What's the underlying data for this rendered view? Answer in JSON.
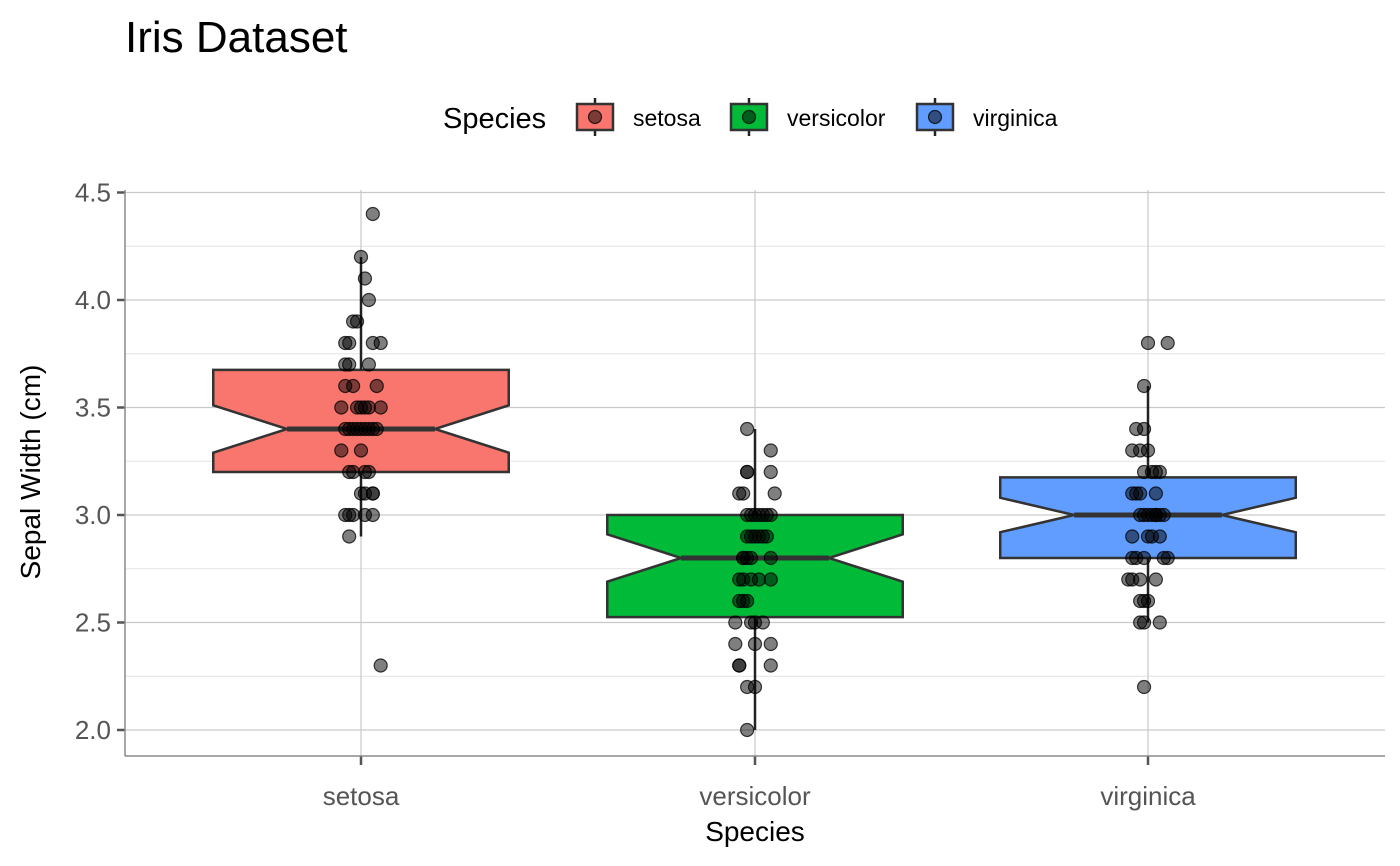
{
  "chart_data": {
    "type": "boxplot",
    "title": "Iris Dataset",
    "xlabel": "Species",
    "ylabel": "Sepal Width (cm)",
    "ylim": [
      1.88,
      4.5
    ],
    "yticks": [
      "2.0",
      "2.5",
      "3.0",
      "3.5",
      "4.0",
      "4.5"
    ],
    "ytick_values": [
      2.0,
      2.5,
      3.0,
      3.5,
      4.0,
      4.5
    ],
    "grid": true,
    "notched": true,
    "jittered_points": true,
    "legend": {
      "title": "Species",
      "position": "top",
      "entries": [
        "setosa",
        "versicolor",
        "virginica"
      ]
    },
    "categories": [
      "setosa",
      "versicolor",
      "virginica"
    ],
    "series": [
      {
        "name": "setosa",
        "color": "#F8766D",
        "q1": 3.2,
        "median": 3.4,
        "q3": 3.675,
        "whisker_low": 2.9,
        "whisker_high": 4.2,
        "notch_low": 3.29,
        "notch_high": 3.51,
        "points": [
          {
            "dx": 0.03,
            "y": 4.4
          },
          {
            "dx": 0.0,
            "y": 4.2
          },
          {
            "dx": 0.01,
            "y": 4.1
          },
          {
            "dx": 0.02,
            "y": 4.0
          },
          {
            "dx": -0.01,
            "y": 3.9
          },
          {
            "dx": -0.02,
            "y": 3.9
          },
          {
            "dx": 0.05,
            "y": 3.8
          },
          {
            "dx": 0.03,
            "y": 3.8
          },
          {
            "dx": -0.04,
            "y": 3.8
          },
          {
            "dx": -0.03,
            "y": 3.8
          },
          {
            "dx": -0.04,
            "y": 3.7
          },
          {
            "dx": 0.02,
            "y": 3.7
          },
          {
            "dx": -0.03,
            "y": 3.7
          },
          {
            "dx": 0.04,
            "y": 3.6
          },
          {
            "dx": -0.04,
            "y": 3.6
          },
          {
            "dx": -0.02,
            "y": 3.6
          },
          {
            "dx": 0.05,
            "y": 3.5
          },
          {
            "dx": -0.05,
            "y": 3.5
          },
          {
            "dx": 0.0,
            "y": 3.5
          },
          {
            "dx": 0.01,
            "y": 3.5
          },
          {
            "dx": -0.01,
            "y": 3.5
          },
          {
            "dx": 0.02,
            "y": 3.5
          },
          {
            "dx": -0.02,
            "y": 3.4
          },
          {
            "dx": 0.03,
            "y": 3.4
          },
          {
            "dx": -0.04,
            "y": 3.4
          },
          {
            "dx": 0.01,
            "y": 3.4
          },
          {
            "dx": -0.03,
            "y": 3.4
          },
          {
            "dx": 0.04,
            "y": 3.4
          },
          {
            "dx": 0.0,
            "y": 3.4
          },
          {
            "dx": 0.02,
            "y": 3.4
          },
          {
            "dx": -0.01,
            "y": 3.4
          },
          {
            "dx": -0.05,
            "y": 3.3
          },
          {
            "dx": 0.0,
            "y": 3.3
          },
          {
            "dx": -0.03,
            "y": 3.2
          },
          {
            "dx": 0.01,
            "y": 3.2
          },
          {
            "dx": -0.02,
            "y": 3.2
          },
          {
            "dx": 0.02,
            "y": 3.2
          },
          {
            "dx": 0.03,
            "y": 3.1
          },
          {
            "dx": 0.01,
            "y": 3.1
          },
          {
            "dx": 0.0,
            "y": 3.1
          },
          {
            "dx": 0.03,
            "y": 3.1
          },
          {
            "dx": -0.02,
            "y": 3.0
          },
          {
            "dx": -0.03,
            "y": 3.0
          },
          {
            "dx": 0.01,
            "y": 3.0
          },
          {
            "dx": 0.03,
            "y": 3.0
          },
          {
            "dx": -0.04,
            "y": 3.0
          },
          {
            "dx": -0.03,
            "y": 2.9
          },
          {
            "dx": 0.05,
            "y": 2.3
          }
        ]
      },
      {
        "name": "versicolor",
        "color": "#00BA38",
        "q1": 2.525,
        "median": 2.8,
        "q3": 3.0,
        "whisker_low": 2.0,
        "whisker_high": 3.4,
        "notch_low": 2.69,
        "notch_high": 2.91,
        "points": [
          {
            "dx": -0.02,
            "y": 3.4
          },
          {
            "dx": 0.04,
            "y": 3.3
          },
          {
            "dx": -0.02,
            "y": 3.2
          },
          {
            "dx": -0.02,
            "y": 3.2
          },
          {
            "dx": 0.04,
            "y": 3.2
          },
          {
            "dx": -0.03,
            "y": 3.1
          },
          {
            "dx": -0.04,
            "y": 3.1
          },
          {
            "dx": 0.05,
            "y": 3.1
          },
          {
            "dx": 0.0,
            "y": 3.0
          },
          {
            "dx": 0.02,
            "y": 3.0
          },
          {
            "dx": 0.04,
            "y": 3.0
          },
          {
            "dx": -0.01,
            "y": 3.0
          },
          {
            "dx": -0.02,
            "y": 3.0
          },
          {
            "dx": 0.01,
            "y": 3.0
          },
          {
            "dx": 0.03,
            "y": 3.0
          },
          {
            "dx": 0.0,
            "y": 2.9
          },
          {
            "dx": -0.01,
            "y": 2.9
          },
          {
            "dx": 0.03,
            "y": 2.9
          },
          {
            "dx": -0.02,
            "y": 2.9
          },
          {
            "dx": 0.02,
            "y": 2.9
          },
          {
            "dx": 0.01,
            "y": 2.9
          },
          {
            "dx": -0.03,
            "y": 2.8
          },
          {
            "dx": -0.02,
            "y": 2.8
          },
          {
            "dx": 0.04,
            "y": 2.8
          },
          {
            "dx": -0.03,
            "y": 2.8
          },
          {
            "dx": -0.01,
            "y": 2.8
          },
          {
            "dx": -0.04,
            "y": 2.7
          },
          {
            "dx": 0.01,
            "y": 2.7
          },
          {
            "dx": 0.04,
            "y": 2.7
          },
          {
            "dx": -0.03,
            "y": 2.7
          },
          {
            "dx": -0.01,
            "y": 2.7
          },
          {
            "dx": -0.04,
            "y": 2.6
          },
          {
            "dx": -0.03,
            "y": 2.6
          },
          {
            "dx": -0.02,
            "y": 2.6
          },
          {
            "dx": 0.02,
            "y": 2.5
          },
          {
            "dx": -0.05,
            "y": 2.5
          },
          {
            "dx": 0.0,
            "y": 2.5
          },
          {
            "dx": -0.01,
            "y": 2.5
          },
          {
            "dx": 0.04,
            "y": 2.4
          },
          {
            "dx": 0.0,
            "y": 2.4
          },
          {
            "dx": -0.05,
            "y": 2.4
          },
          {
            "dx": 0.04,
            "y": 2.3
          },
          {
            "dx": -0.04,
            "y": 2.3
          },
          {
            "dx": -0.04,
            "y": 2.3
          },
          {
            "dx": -0.02,
            "y": 2.2
          },
          {
            "dx": 0.0,
            "y": 2.2
          },
          {
            "dx": -0.02,
            "y": 2.0
          }
        ]
      },
      {
        "name": "virginica",
        "color": "#619CFF",
        "q1": 2.8,
        "median": 3.0,
        "q3": 3.175,
        "whisker_low": 2.5,
        "whisker_high": 3.6,
        "notch_low": 2.92,
        "notch_high": 3.08,
        "points": [
          {
            "dx": 0.05,
            "y": 3.8
          },
          {
            "dx": 0.0,
            "y": 3.8
          },
          {
            "dx": -0.01,
            "y": 3.6
          },
          {
            "dx": -0.03,
            "y": 3.4
          },
          {
            "dx": -0.01,
            "y": 3.4
          },
          {
            "dx": -0.02,
            "y": 3.3
          },
          {
            "dx": -0.04,
            "y": 3.3
          },
          {
            "dx": 0.0,
            "y": 3.3
          },
          {
            "dx": 0.02,
            "y": 3.2
          },
          {
            "dx": 0.03,
            "y": 3.2
          },
          {
            "dx": -0.01,
            "y": 3.2
          },
          {
            "dx": 0.01,
            "y": 3.2
          },
          {
            "dx": -0.02,
            "y": 3.1
          },
          {
            "dx": -0.04,
            "y": 3.1
          },
          {
            "dx": 0.02,
            "y": 3.1
          },
          {
            "dx": -0.03,
            "y": 3.1
          },
          {
            "dx": 0.0,
            "y": 3.0
          },
          {
            "dx": 0.02,
            "y": 3.0
          },
          {
            "dx": 0.04,
            "y": 3.0
          },
          {
            "dx": -0.02,
            "y": 3.0
          },
          {
            "dx": 0.01,
            "y": 3.0
          },
          {
            "dx": 0.03,
            "y": 3.0
          },
          {
            "dx": -0.01,
            "y": 3.0
          },
          {
            "dx": 0.02,
            "y": 3.0
          },
          {
            "dx": 0.03,
            "y": 2.9
          },
          {
            "dx": -0.04,
            "y": 2.9
          },
          {
            "dx": 0.0,
            "y": 2.9
          },
          {
            "dx": 0.01,
            "y": 2.9
          },
          {
            "dx": -0.03,
            "y": 2.8
          },
          {
            "dx": -0.01,
            "y": 2.8
          },
          {
            "dx": 0.04,
            "y": 2.8
          },
          {
            "dx": -0.04,
            "y": 2.8
          },
          {
            "dx": 0.05,
            "y": 2.8
          },
          {
            "dx": 0.02,
            "y": 2.7
          },
          {
            "dx": -0.05,
            "y": 2.7
          },
          {
            "dx": -0.02,
            "y": 2.7
          },
          {
            "dx": -0.04,
            "y": 2.7
          },
          {
            "dx": -0.01,
            "y": 2.6
          },
          {
            "dx": -0.02,
            "y": 2.6
          },
          {
            "dx": 0.0,
            "y": 2.6
          },
          {
            "dx": -0.02,
            "y": 2.5
          },
          {
            "dx": 0.03,
            "y": 2.5
          },
          {
            "dx": -0.01,
            "y": 2.5
          },
          {
            "dx": -0.01,
            "y": 2.2
          }
        ]
      }
    ]
  }
}
